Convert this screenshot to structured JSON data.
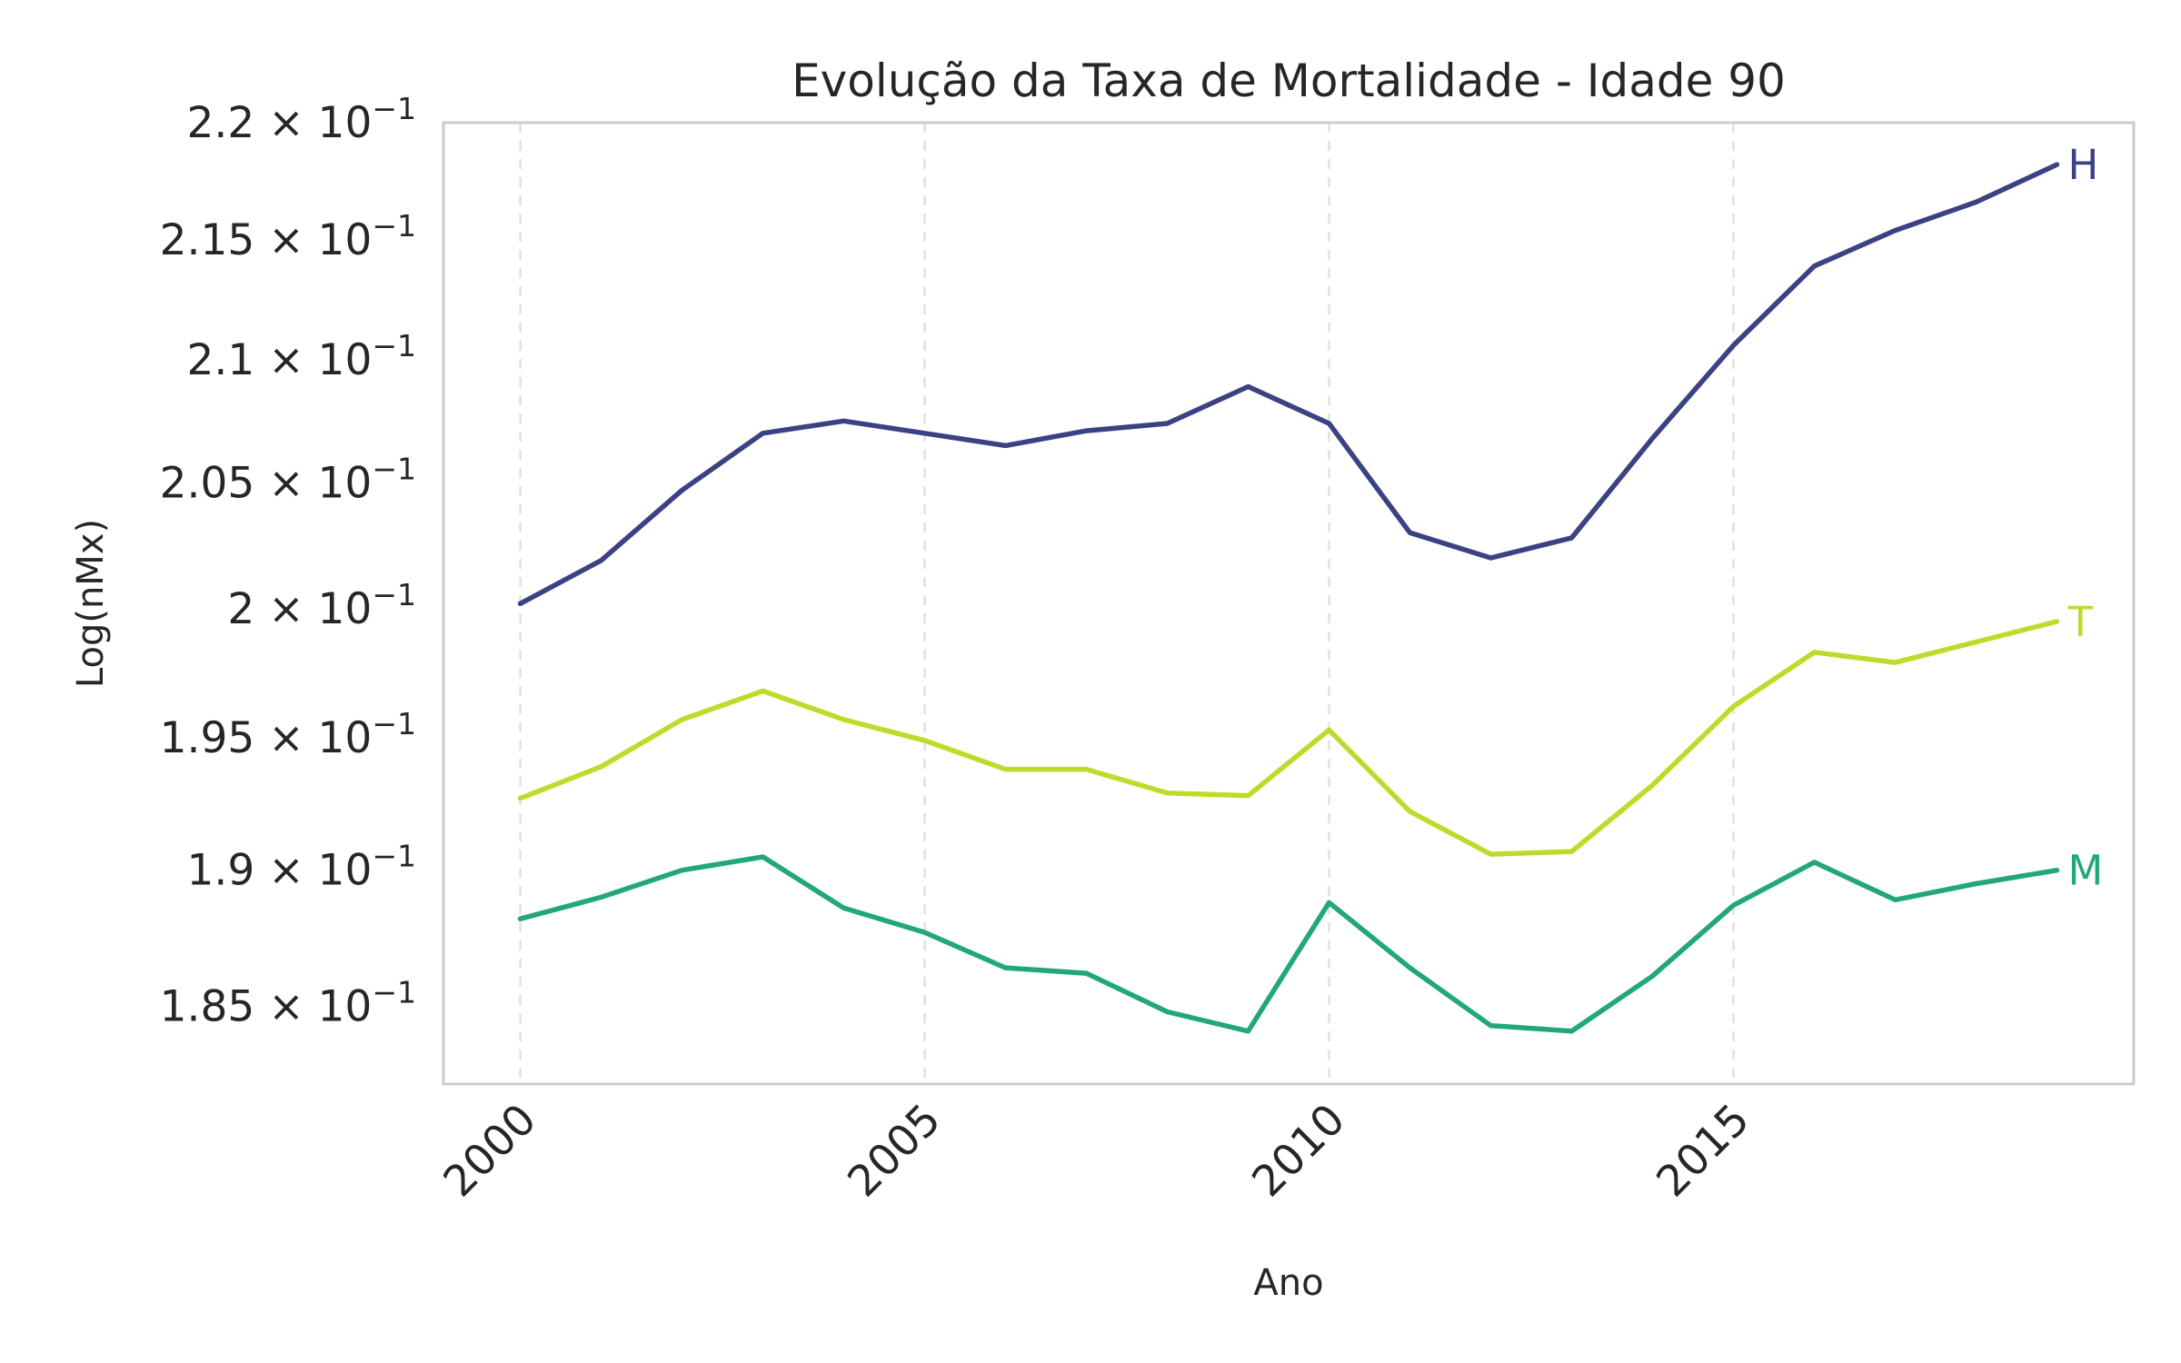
{
  "chart_data": {
    "type": "line",
    "title": "Evolução da Taxa de Mortalidade - Idade 90",
    "xlabel": "Ano",
    "ylabel": "Log(nMx)",
    "yscale": "log",
    "xlim": [
      1999.05,
      2019.95
    ],
    "ylim": [
      0.1822,
      0.22
    ],
    "grid": "x-only",
    "x_ticks": [
      2000,
      2005,
      2010,
      2015
    ],
    "x_tick_labels": [
      "2000",
      "2005",
      "2010",
      "2015"
    ],
    "y_ticks": [
      {
        "value": 0.185,
        "mantissa": "1.85"
      },
      {
        "value": 0.19,
        "mantissa": "1.9"
      },
      {
        "value": 0.195,
        "mantissa": "1.95"
      },
      {
        "value": 0.2,
        "mantissa": "2"
      },
      {
        "value": 0.205,
        "mantissa": "2.05"
      },
      {
        "value": 0.21,
        "mantissa": "2.1"
      },
      {
        "value": 0.215,
        "mantissa": "2.15"
      },
      {
        "value": 0.22,
        "mantissa": "2.2"
      }
    ],
    "y_tick_suffix": "× 10",
    "y_tick_exponent": "−1",
    "x": [
      2000,
      2001,
      2002,
      2003,
      2004,
      2005,
      2006,
      2007,
      2008,
      2009,
      2010,
      2011,
      2012,
      2013,
      2014,
      2015,
      2016,
      2017,
      2018,
      2019
    ],
    "series": [
      {
        "name": "H",
        "color": "#3b4283",
        "values": [
          0.2002,
          0.2019,
          0.2047,
          0.207,
          0.2075,
          0.207,
          0.2065,
          0.2071,
          0.2074,
          0.2089,
          0.2074,
          0.203,
          0.202,
          0.2028,
          0.2068,
          0.2106,
          0.2139,
          0.2154,
          0.2166,
          0.2182
        ]
      },
      {
        "name": "T",
        "color": "#bcdc2a",
        "values": [
          0.1927,
          0.1939,
          0.1957,
          0.1968,
          0.1957,
          0.1949,
          0.1938,
          0.1938,
          0.1929,
          0.1928,
          0.1953,
          0.1922,
          0.1906,
          0.1907,
          0.1932,
          0.1962,
          0.1983,
          0.1979,
          0.1987,
          0.1995
        ]
      },
      {
        "name": "M",
        "color": "#22a77d",
        "values": [
          0.1882,
          0.189,
          0.19,
          0.1905,
          0.1886,
          0.1877,
          0.1864,
          0.1862,
          0.1848,
          0.1841,
          0.1888,
          0.1864,
          0.1843,
          0.1841,
          0.1861,
          0.1887,
          0.1903,
          0.1889,
          0.1895,
          0.19
        ]
      }
    ]
  }
}
